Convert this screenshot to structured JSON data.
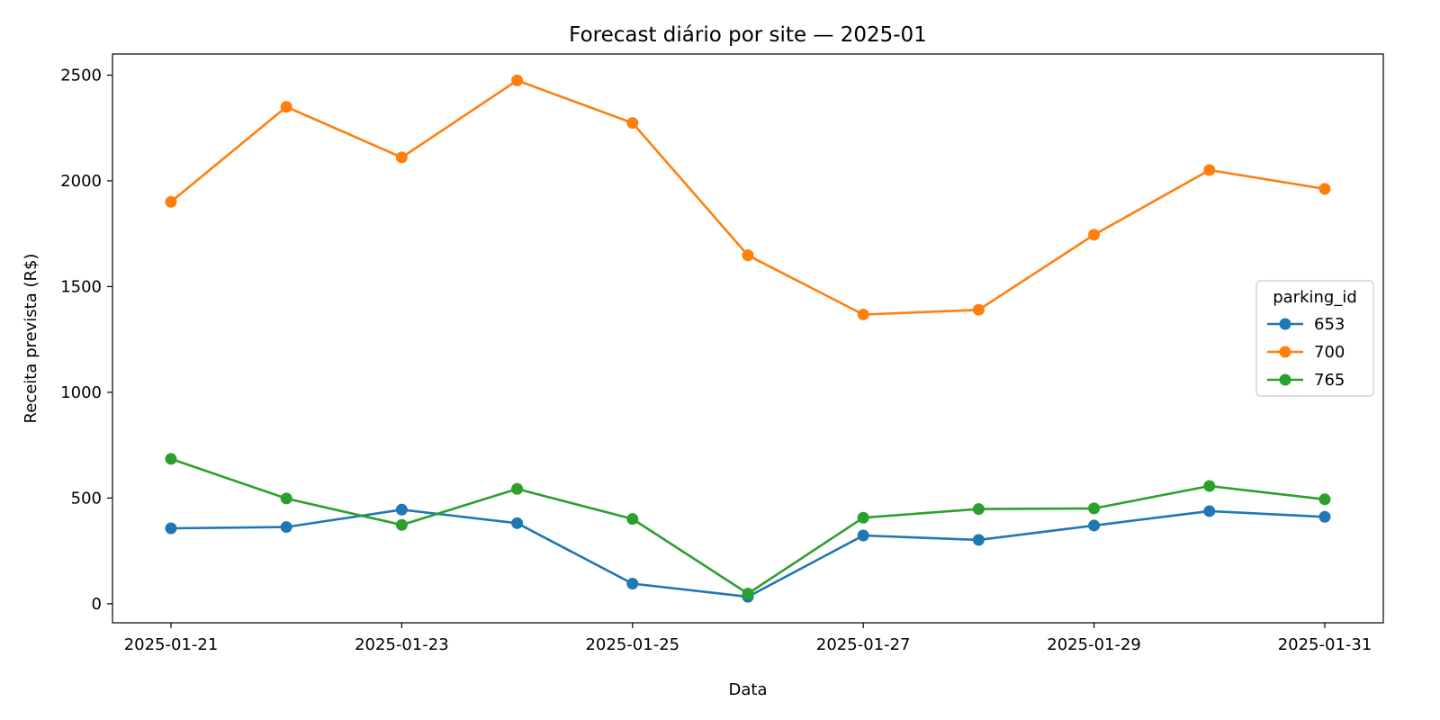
{
  "chart_data": {
    "type": "line",
    "title": "Forecast diário por site — 2025-01",
    "xlabel": "Data",
    "ylabel": "Receita prevista (R$)",
    "x": [
      "2025-01-21",
      "2025-01-22",
      "2025-01-23",
      "2025-01-24",
      "2025-01-25",
      "2025-01-26",
      "2025-01-27",
      "2025-01-28",
      "2025-01-29",
      "2025-01-30",
      "2025-01-31"
    ],
    "xticks": [
      "2025-01-21",
      "2025-01-23",
      "2025-01-25",
      "2025-01-27",
      "2025-01-29",
      "2025-01-31"
    ],
    "yticks": [
      0,
      500,
      1000,
      1500,
      2000,
      2500
    ],
    "ylim": [
      -90,
      2600
    ],
    "grid": false,
    "legend": {
      "title": "parking_id",
      "placement": "center-right"
    },
    "series": [
      {
        "name": "653",
        "color": "#1f77b4",
        "values": [
          357,
          363,
          445,
          381,
          95,
          33,
          323,
          302,
          370,
          438,
          411
        ]
      },
      {
        "name": "700",
        "color": "#ff7f0e",
        "values": [
          1901,
          2350,
          2111,
          2475,
          2274,
          1648,
          1368,
          1390,
          1745,
          2051,
          1962
        ]
      },
      {
        "name": "765",
        "color": "#2ca02c",
        "values": [
          685,
          498,
          373,
          543,
          401,
          48,
          407,
          448,
          451,
          557,
          494
        ]
      }
    ]
  }
}
